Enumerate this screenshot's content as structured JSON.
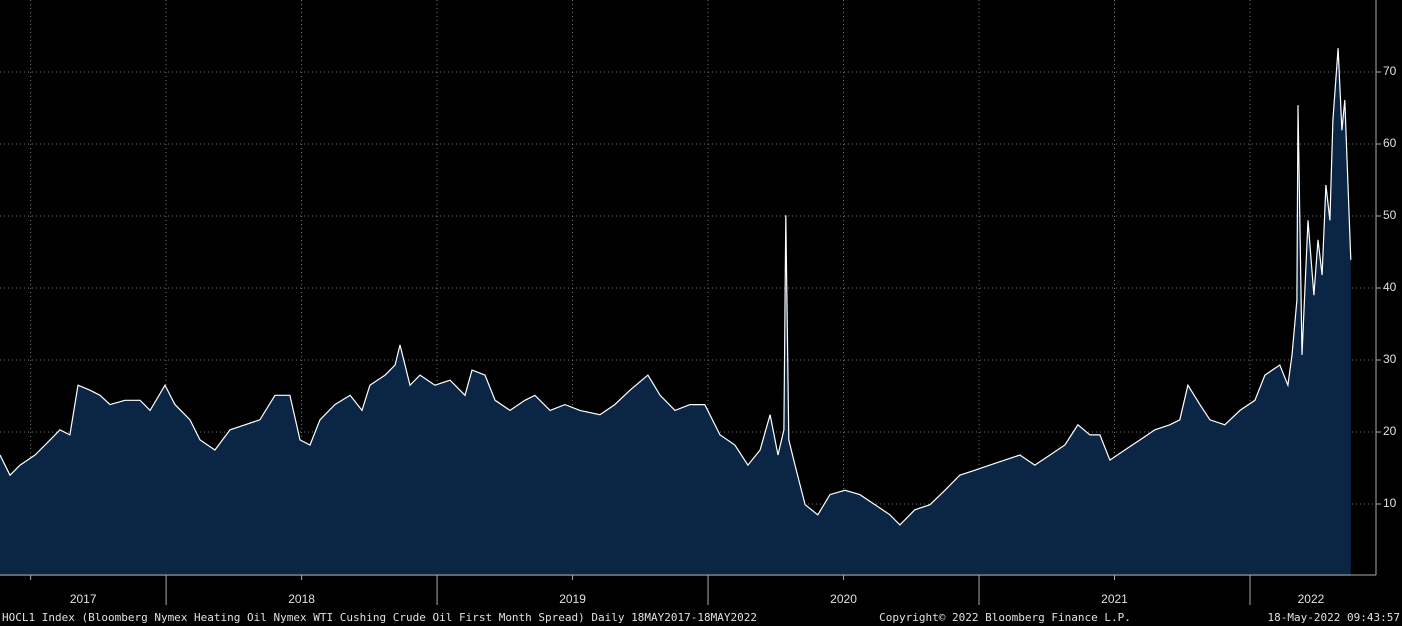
{
  "chart_data": {
    "type": "area",
    "line_color": "#ffffff",
    "fill_color": "#0b2545",
    "grid": true,
    "x": [
      2017.387,
      2017.424,
      2017.461,
      2017.516,
      2017.572,
      2017.608,
      2017.645,
      2017.675,
      2017.719,
      2017.756,
      2017.793,
      2017.848,
      2017.904,
      2017.941,
      2017.996,
      2018.033,
      2018.088,
      2018.125,
      2018.18,
      2018.236,
      2018.291,
      2018.346,
      2018.402,
      2018.457,
      2018.494,
      2018.531,
      2018.568,
      2018.623,
      2018.679,
      2018.723,
      2018.752,
      2018.808,
      2018.845,
      2018.863,
      2018.9,
      2018.937,
      2018.992,
      2019.048,
      2019.103,
      2019.129,
      2019.177,
      2019.214,
      2019.269,
      2019.324,
      2019.361,
      2019.417,
      2019.472,
      2019.527,
      2019.601,
      2019.656,
      2019.712,
      2019.778,
      2019.823,
      2019.878,
      2019.933,
      2019.988,
      2020.044,
      2020.099,
      2020.147,
      2020.192,
      2020.229,
      2020.258,
      2020.28,
      2020.287,
      2020.298,
      2020.321,
      2020.358,
      2020.405,
      2020.45,
      2020.505,
      2020.56,
      2020.616,
      2020.671,
      2020.708,
      2020.763,
      2020.819,
      2020.874,
      2020.929,
      2020.985,
      2021.04,
      2021.095,
      2021.151,
      2021.206,
      2021.262,
      2021.317,
      2021.365,
      2021.409,
      2021.446,
      2021.483,
      2021.538,
      2021.594,
      2021.649,
      2021.704,
      2021.741,
      2021.771,
      2021.815,
      2021.852,
      2021.907,
      2021.963,
      2022.018,
      2022.055,
      2022.11,
      2022.14,
      2022.155,
      2022.173,
      2022.177,
      2022.192,
      2022.214,
      2022.236,
      2022.251,
      2022.266,
      2022.28,
      2022.295,
      2022.306,
      2022.325,
      2022.339,
      2022.35,
      2022.361,
      2022.372
    ],
    "values": [
      16.8,
      14,
      15.4,
      16.8,
      18.9,
      20.3,
      19.6,
      26.5,
      25.8,
      25.1,
      23.8,
      24.4,
      24.4,
      23,
      26.5,
      23.8,
      21.7,
      18.9,
      17.5,
      20.3,
      21,
      21.7,
      25.1,
      25.1,
      18.9,
      18.2,
      21.7,
      23.8,
      25.1,
      23,
      26.5,
      27.9,
      29.3,
      32.1,
      26.5,
      27.9,
      26.5,
      27.2,
      25.1,
      28.6,
      27.9,
      24.4,
      23,
      24.4,
      25.1,
      23,
      23.8,
      23,
      22.4,
      23.8,
      25.8,
      27.9,
      25.1,
      23,
      23.8,
      23.8,
      19.6,
      18.2,
      15.4,
      17.5,
      22.4,
      16.8,
      20.3,
      50.1,
      18.9,
      15.4,
      9.9,
      8.5,
      11.3,
      11.9,
      11.3,
      9.9,
      8.5,
      7.1,
      9.2,
      9.9,
      11.9,
      14,
      14.7,
      15.4,
      16.1,
      16.8,
      15.4,
      16.8,
      18.2,
      21,
      19.6,
      19.6,
      16.1,
      17.5,
      18.9,
      20.3,
      21,
      21.7,
      26.5,
      23.8,
      21.7,
      21,
      23,
      24.4,
      27.9,
      29.3,
      26.5,
      30.7,
      38.3,
      65.4,
      30.7,
      49.4,
      39,
      46.7,
      41.8,
      54.3,
      49.4,
      63.3,
      73.3,
      61.9,
      66.1,
      55,
      43.9
    ],
    "xlim": [
      2017.387,
      2022.465
    ],
    "ylim": [
      0,
      80
    ],
    "yticks": [
      10,
      20,
      30,
      40,
      50,
      60,
      70
    ],
    "xgrid": [
      2017.5,
      2018,
      2018.5,
      2019,
      2019.5,
      2020,
      2020.5,
      2021,
      2021.5,
      2022
    ],
    "xticks": [
      {
        "value": 2017.694,
        "label": "2017"
      },
      {
        "value": 2018.5,
        "label": "2018"
      },
      {
        "value": 2019.5,
        "label": "2019"
      },
      {
        "value": 2020.5,
        "label": "2020"
      },
      {
        "value": 2021.5,
        "label": "2021"
      },
      {
        "value": 2022.225,
        "label": "2022"
      }
    ],
    "footer_left": "HOCL1 Index (Bloomberg Nymex Heating Oil Nymex WTI Cushing Crude Oil First Month Spread)  Daily 18MAY2017-18MAY2022",
    "footer_center": "Copyright© 2022 Bloomberg Finance L.P.",
    "footer_right": "18-May-2022 09:43:57"
  }
}
